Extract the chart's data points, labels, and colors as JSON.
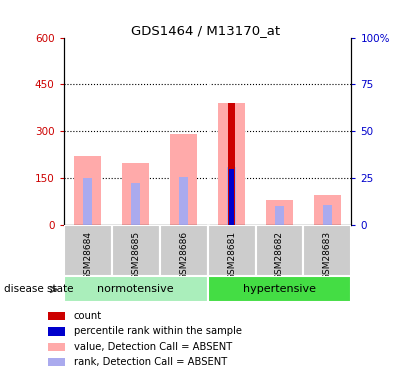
{
  "title": "GDS1464 / M13170_at",
  "samples": [
    "GSM28684",
    "GSM28685",
    "GSM28686",
    "GSM28681",
    "GSM28682",
    "GSM28683"
  ],
  "ylim_left": [
    0,
    600
  ],
  "ylim_right": [
    0,
    100
  ],
  "yticks_left": [
    0,
    150,
    300,
    450,
    600
  ],
  "yticks_right": [
    0,
    25,
    50,
    75,
    100
  ],
  "ytick_labels_left": [
    "0",
    "150",
    "300",
    "450",
    "600"
  ],
  "ytick_labels_right": [
    "0",
    "25",
    "50",
    "75",
    "100%"
  ],
  "value_absent": [
    220,
    200,
    290,
    390,
    80,
    95
  ],
  "rank_absent": [
    150,
    135,
    155,
    185,
    60,
    65
  ],
  "count_value": [
    0,
    0,
    0,
    390,
    0,
    0
  ],
  "percentile_rank_scaled": [
    0,
    0,
    0,
    180,
    0,
    0
  ],
  "color_count": "#cc0000",
  "color_percentile": "#0000cc",
  "color_value_absent": "#ffaaaa",
  "color_rank_absent": "#aaaaee",
  "normotensive_color": "#aaeebb",
  "hypertensive_color": "#44dd44",
  "legend_items": [
    {
      "label": "count",
      "color": "#cc0000"
    },
    {
      "label": "percentile rank within the sample",
      "color": "#0000cc"
    },
    {
      "label": "value, Detection Call = ABSENT",
      "color": "#ffaaaa"
    },
    {
      "label": "rank, Detection Call = ABSENT",
      "color": "#aaaaee"
    }
  ],
  "dotted_lines": [
    150,
    300,
    450
  ]
}
